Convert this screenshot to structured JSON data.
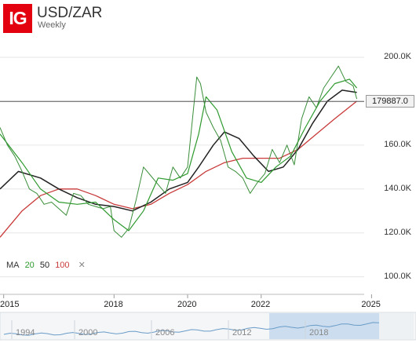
{
  "header": {
    "logo_text": "IG",
    "title": "USD/ZAR",
    "subtitle": "Weekly"
  },
  "price_tag": "179887.0",
  "legend": {
    "label": "MA",
    "ma20": "20",
    "ma50": "50",
    "ma100": "100",
    "close": "✕"
  },
  "navigator": {
    "ticks": [
      "1994",
      "2000",
      "2006",
      "2012",
      "2018"
    ]
  },
  "colors": {
    "price": "#3a8e3a",
    "price_down": "#c93a3a",
    "ma20": "#2e9a2e",
    "ma50": "#222222",
    "ma100": "#c93a3a",
    "logo": "#e3000f",
    "navigator_fill": "#b9d3ea"
  },
  "chart_data": {
    "type": "line",
    "title": "USD/ZAR",
    "subtitle": "Weekly",
    "x_tick_labels": [
      "2015",
      "2018",
      "2020",
      "2022",
      "2025"
    ],
    "y_tick_labels": [
      "100.0K",
      "120.0K",
      "140.0K",
      "160.0K",
      "180.0K",
      "200.0K"
    ],
    "xlim": [
      2014.9,
      2024.8
    ],
    "ylim": [
      92000,
      210000
    ],
    "current_price": 179887.0,
    "series": [
      {
        "name": "USD/ZAR",
        "x": [
          2014.9,
          2015.1,
          2015.3,
          2015.5,
          2015.7,
          2015.9,
          2016.1,
          2016.3,
          2016.5,
          2016.7,
          2016.9,
          2017.1,
          2017.3,
          2017.5,
          2017.7,
          2017.9,
          2018.0,
          2018.2,
          2018.4,
          2018.6,
          2018.8,
          2019.0,
          2019.2,
          2019.4,
          2019.6,
          2019.8,
          2020.0,
          2020.15,
          2020.25,
          2020.35,
          2020.5,
          2020.7,
          2020.9,
          2021.1,
          2021.3,
          2021.5,
          2021.7,
          2021.9,
          2022.1,
          2022.3,
          2022.5,
          2022.7,
          2022.9,
          2023.1,
          2023.3,
          2023.5,
          2023.7,
          2023.9,
          2024.1,
          2024.3,
          2024.5,
          2024.6
        ],
        "values": [
          168000,
          160000,
          155000,
          148000,
          140000,
          138000,
          133000,
          134000,
          131000,
          128000,
          138000,
          137000,
          133000,
          132000,
          131000,
          132000,
          121000,
          118000,
          122000,
          135000,
          150000,
          146000,
          142000,
          138000,
          150000,
          145000,
          150000,
          175000,
          191000,
          188000,
          175000,
          168000,
          162000,
          150000,
          148000,
          145000,
          138000,
          143000,
          147000,
          158000,
          152000,
          160000,
          151000,
          172000,
          182000,
          177000,
          186000,
          191000,
          196000,
          189000,
          187000,
          181000
        ]
      },
      {
        "name": "20",
        "x": [
          2014.9,
          2015.5,
          2016.0,
          2016.5,
          2017.0,
          2017.5,
          2018.0,
          2018.4,
          2018.8,
          2019.2,
          2019.6,
          2020.0,
          2020.3,
          2020.5,
          2020.8,
          2021.2,
          2021.6,
          2022.0,
          2022.4,
          2022.8,
          2023.2,
          2023.6,
          2024.0,
          2024.4,
          2024.6
        ],
        "values": [
          165000,
          152000,
          140000,
          134000,
          133000,
          134000,
          126000,
          121000,
          130000,
          145000,
          144000,
          147000,
          165000,
          182000,
          176000,
          157000,
          145000,
          143000,
          150000,
          155000,
          168000,
          180000,
          188000,
          190000,
          186000
        ]
      },
      {
        "name": "50",
        "x": [
          2014.9,
          2015.4,
          2016.0,
          2016.5,
          2017.0,
          2017.5,
          2018.0,
          2018.5,
          2019.0,
          2019.5,
          2020.0,
          2020.3,
          2020.7,
          2021.0,
          2021.4,
          2021.8,
          2022.2,
          2022.6,
          2023.0,
          2023.4,
          2023.8,
          2024.2,
          2024.6
        ],
        "values": [
          140000,
          148000,
          145000,
          140000,
          136000,
          133000,
          132000,
          130000,
          134000,
          140000,
          143000,
          150000,
          160000,
          166000,
          163000,
          155000,
          148000,
          150000,
          158000,
          170000,
          180000,
          185000,
          184000
        ]
      },
      {
        "name": "100",
        "x": [
          2014.9,
          2015.5,
          2016.0,
          2016.5,
          2017.0,
          2017.5,
          2018.0,
          2018.5,
          2019.0,
          2019.5,
          2020.0,
          2020.5,
          2021.0,
          2021.5,
          2022.0,
          2022.5,
          2023.0,
          2023.5,
          2024.0,
          2024.6
        ],
        "values": [
          118000,
          130000,
          137000,
          140000,
          140000,
          137000,
          133000,
          131000,
          133000,
          138000,
          142000,
          148000,
          152000,
          154000,
          154000,
          154000,
          158000,
          165000,
          172000,
          180000
        ]
      }
    ]
  }
}
